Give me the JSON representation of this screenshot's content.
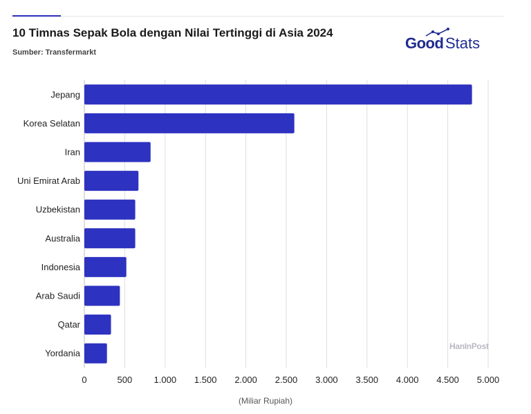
{
  "header": {
    "title": "10 Timnas Sepak Bola dengan Nilai Tertinggi di Asia 2024",
    "source": "Sumber: Transfermarkt",
    "logo_good": "Good",
    "logo_stats": "Stats",
    "watermark": "HanInPost"
  },
  "colors": {
    "bar": "#2e32c0",
    "accent": "#1f2b8f"
  },
  "chart_data": {
    "type": "bar",
    "orientation": "horizontal",
    "categories": [
      "Jepang",
      "Korea Selatan",
      "Iran",
      "Uni Emirat Arab",
      "Uzbekistan",
      "Australia",
      "Indonesia",
      "Arab Saudi",
      "Qatar",
      "Yordania"
    ],
    "values": [
      4800,
      2600,
      820,
      670,
      630,
      630,
      520,
      440,
      330,
      280
    ],
    "title": "10 Timnas Sepak Bola dengan Nilai Tertinggi di Asia 2024",
    "xlabel": "(Miliar Rupiah)",
    "ylabel": "",
    "xlim": [
      0,
      5000
    ],
    "xticks": [
      0,
      500,
      1000,
      1500,
      2000,
      2500,
      3000,
      3500,
      4000,
      4500,
      5000
    ],
    "xtick_labels": [
      "0",
      "500",
      "1.000",
      "1.500",
      "2.000",
      "2.500",
      "3.000",
      "3.500",
      "4.000",
      "4.500",
      "5.000"
    ],
    "grid": true,
    "legend": "none"
  }
}
